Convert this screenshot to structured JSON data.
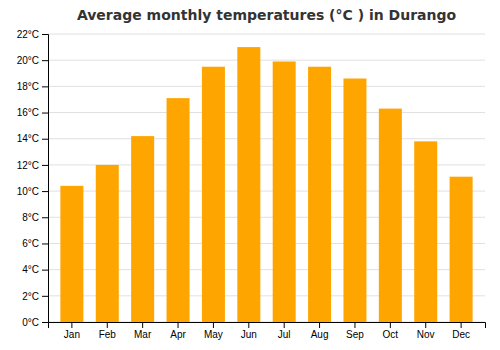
{
  "chart_data": {
    "type": "bar",
    "title": "Average monthly temperatures (°C ) in Durango",
    "categories": [
      "Jan",
      "Feb",
      "Mar",
      "Apr",
      "May",
      "Jun",
      "Jul",
      "Aug",
      "Sep",
      "Oct",
      "Nov",
      "Dec"
    ],
    "values": [
      10.4,
      12.0,
      14.2,
      17.1,
      19.5,
      21.0,
      19.9,
      19.5,
      18.6,
      16.3,
      13.8,
      11.1
    ],
    "color": "#FFA500",
    "ylim": [
      0,
      22
    ],
    "yticks": [
      {
        "value": 0,
        "label": "0°C"
      },
      {
        "value": 2,
        "label": "2°C"
      },
      {
        "value": 4,
        "label": "4°C"
      },
      {
        "value": 6,
        "label": "6°C"
      },
      {
        "value": 8,
        "label": "8°C"
      },
      {
        "value": 10,
        "label": "10°C"
      },
      {
        "value": 12,
        "label": "12°C"
      },
      {
        "value": 14,
        "label": "14°C"
      },
      {
        "value": 16,
        "label": "16°C"
      },
      {
        "value": 18,
        "label": "18°C"
      },
      {
        "value": 20,
        "label": "20°C"
      },
      {
        "value": 22,
        "label": "22°C"
      }
    ],
    "grid": true
  }
}
